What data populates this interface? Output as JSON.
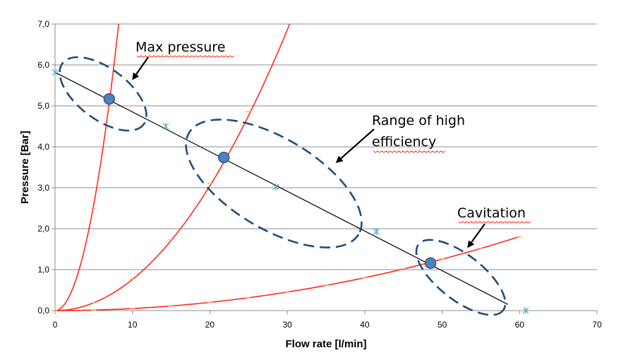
{
  "chart_data": {
    "type": "scatter",
    "xlabel": "Flow rate [l/min]",
    "ylabel": "Pressure [Bar]",
    "xlim": [
      0,
      70
    ],
    "ylim": [
      0,
      7
    ],
    "xticks": [
      "0",
      "10",
      "20",
      "30",
      "40",
      "50",
      "60",
      "70"
    ],
    "yticks": [
      "0,0",
      "1,0",
      "2,0",
      "3,0",
      "4,0",
      "5,0",
      "6,0",
      "7,0"
    ],
    "grid": "horizontal",
    "legend": "none",
    "pump_curve": {
      "color": "#000000",
      "marker_color": "#4bacc6",
      "line": [
        [
          0,
          5.82
        ],
        [
          58.5,
          0.15
        ]
      ],
      "markers": [
        [
          0,
          5.82
        ],
        [
          14.3,
          4.5
        ],
        [
          28.5,
          3.02
        ],
        [
          41.5,
          1.93
        ],
        [
          60.8,
          0.0
        ]
      ]
    },
    "system_curves": [
      {
        "color": "#ff2a1a",
        "k": 0.1036,
        "markers": [
          [
            0,
            0
          ],
          [
            5,
            2.49
          ],
          [
            10,
            9.9
          ]
        ]
      },
      {
        "color": "#ff2a1a",
        "k": 0.00762,
        "markers": [
          [
            0,
            0
          ],
          [
            5,
            0.19
          ],
          [
            10,
            0.77
          ],
          [
            15,
            1.73
          ],
          [
            20,
            3.1
          ],
          [
            25,
            4.86
          ]
        ]
      },
      {
        "color": "#ff2a1a",
        "k": 0.000502,
        "markers": [
          [
            0,
            0
          ],
          [
            5,
            0.01
          ],
          [
            10,
            0.05
          ],
          [
            15,
            0.11
          ],
          [
            20,
            0.2
          ],
          [
            25,
            0.31
          ],
          [
            30,
            0.45
          ],
          [
            35,
            0.62
          ],
          [
            40,
            0.8
          ],
          [
            45,
            1.02
          ],
          [
            50,
            1.26
          ],
          [
            55,
            1.52
          ],
          [
            60,
            1.8
          ]
        ]
      }
    ],
    "operating_points": [
      {
        "x": 7.0,
        "y": 5.17
      },
      {
        "x": 21.8,
        "y": 3.74
      },
      {
        "x": 48.5,
        "y": 1.16
      }
    ],
    "annotations": [
      {
        "text": "Max pressure"
      },
      {
        "text": "Range of high"
      },
      {
        "text": "efficiency"
      },
      {
        "text": "Cavitation"
      }
    ]
  }
}
